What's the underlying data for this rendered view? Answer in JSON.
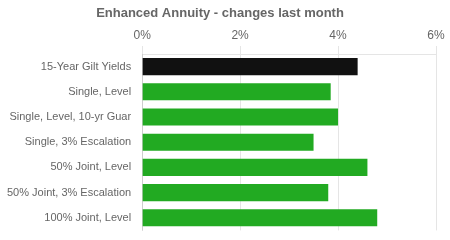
{
  "chart_data": {
    "type": "bar",
    "orientation": "horizontal",
    "title": "Enhanced Annuity - changes last month",
    "categories": [
      "15-Year Gilt Yields",
      "Single, Level",
      "Single, Level, 10-yr Guar",
      "Single, 3% Escalation",
      "50% Joint, Level",
      "50% Joint, 3% Escalation",
      "100% Joint, Level"
    ],
    "values": [
      4.4,
      3.85,
      4.0,
      3.5,
      4.6,
      3.8,
      4.8
    ],
    "colors": [
      "#111111",
      "#22aa22",
      "#22aa22",
      "#22aa22",
      "#22aa22",
      "#22aa22",
      "#22aa22"
    ],
    "xlim": [
      0,
      6
    ],
    "xticks": [
      {
        "value": 0,
        "label": "0%"
      },
      {
        "value": 2,
        "label": "2%"
      },
      {
        "value": 4,
        "label": "4%"
      },
      {
        "value": 6,
        "label": "6%"
      }
    ],
    "grid": true
  }
}
